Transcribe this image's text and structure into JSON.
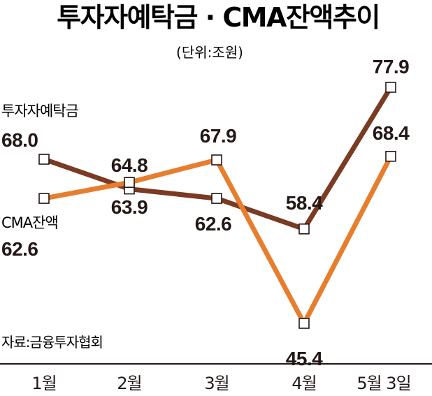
{
  "title": "투자자예탁금 · CMA잔액추이",
  "unit": "(단위:조원)",
  "source": "자료:금융투자협회",
  "colors": {
    "deposit": "#7b3a22",
    "cma": "#e67e2e",
    "axis": "#231815"
  },
  "chart_data": {
    "type": "line",
    "categories": [
      "1월",
      "2월",
      "3월",
      "4월",
      "5월 3일"
    ],
    "ylim": [
      40,
      82
    ],
    "grid": false,
    "legend": "inline-left",
    "series": [
      {
        "key": "deposit",
        "name": "투자자예탁금",
        "values": [
          68.0,
          63.9,
          62.6,
          58.4,
          77.9
        ],
        "labels": [
          "68.0",
          "63.9",
          "62.6",
          "58.4",
          "77.9"
        ]
      },
      {
        "key": "cma",
        "name": "CMA잔액",
        "values": [
          62.6,
          64.8,
          67.9,
          45.4,
          68.4
        ],
        "labels": [
          "62.6",
          "64.8",
          "67.9",
          "45.4",
          "68.4"
        ]
      }
    ]
  }
}
